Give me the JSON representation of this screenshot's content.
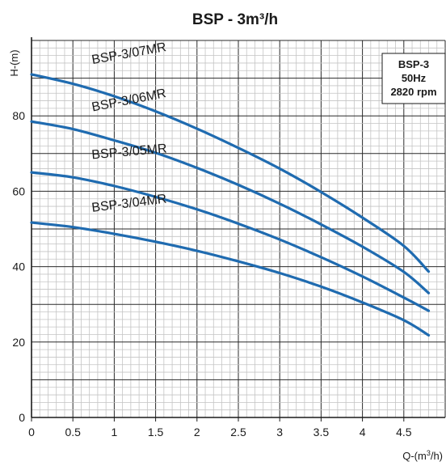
{
  "chart_data": {
    "type": "line",
    "title": "BSP - 3m³/h",
    "xlabel": "Q-(m3/h)",
    "ylabel": "H-(m)",
    "xlim": [
      0,
      5
    ],
    "ylim": [
      0,
      100
    ],
    "x_ticks": [
      "0",
      "0.5",
      "1",
      "1.5",
      "2",
      "2.5",
      "3",
      "3.5",
      "4",
      "4.5"
    ],
    "y_ticks": [
      "0",
      "20",
      "40",
      "60",
      "80"
    ],
    "grid": true,
    "info_box": {
      "location": "top-right",
      "lines": [
        "BSP-3",
        "50Hz",
        "2820 rpm"
      ]
    },
    "series": [
      {
        "name": "BSP-3/07MR",
        "x": [
          0,
          0.5,
          1,
          1.5,
          2,
          2.5,
          3,
          3.5,
          4,
          4.5,
          4.8
        ],
        "y": [
          91,
          88.5,
          85.2,
          81.2,
          76.6,
          71.5,
          66,
          59.8,
          53,
          45.5,
          38.7
        ]
      },
      {
        "name": "BSP-3/06MR",
        "x": [
          0,
          0.5,
          1,
          1.5,
          2,
          2.5,
          3,
          3.5,
          4,
          4.5,
          4.8
        ],
        "y": [
          78.5,
          76.5,
          73.5,
          70.2,
          66.2,
          61.7,
          56.7,
          51.2,
          45.3,
          38.6,
          33
        ]
      },
      {
        "name": "BSP-3/05MR",
        "x": [
          0,
          0.5,
          1,
          1.5,
          2,
          2.5,
          3,
          3.5,
          4,
          4.5,
          4.8
        ],
        "y": [
          65,
          63.7,
          61.4,
          58.5,
          55.2,
          51.4,
          47.2,
          42.5,
          37.4,
          31.8,
          28.3
        ]
      },
      {
        "name": "BSP-3/04MR",
        "x": [
          0,
          0.5,
          1,
          1.5,
          2,
          2.5,
          3,
          3.5,
          4,
          4.5,
          4.8
        ],
        "y": [
          51.7,
          50.5,
          48.7,
          46.6,
          44.2,
          41.4,
          38.3,
          34.7,
          30.5,
          25.8,
          21.8
        ]
      }
    ],
    "line_color": "#1f6bb0"
  }
}
